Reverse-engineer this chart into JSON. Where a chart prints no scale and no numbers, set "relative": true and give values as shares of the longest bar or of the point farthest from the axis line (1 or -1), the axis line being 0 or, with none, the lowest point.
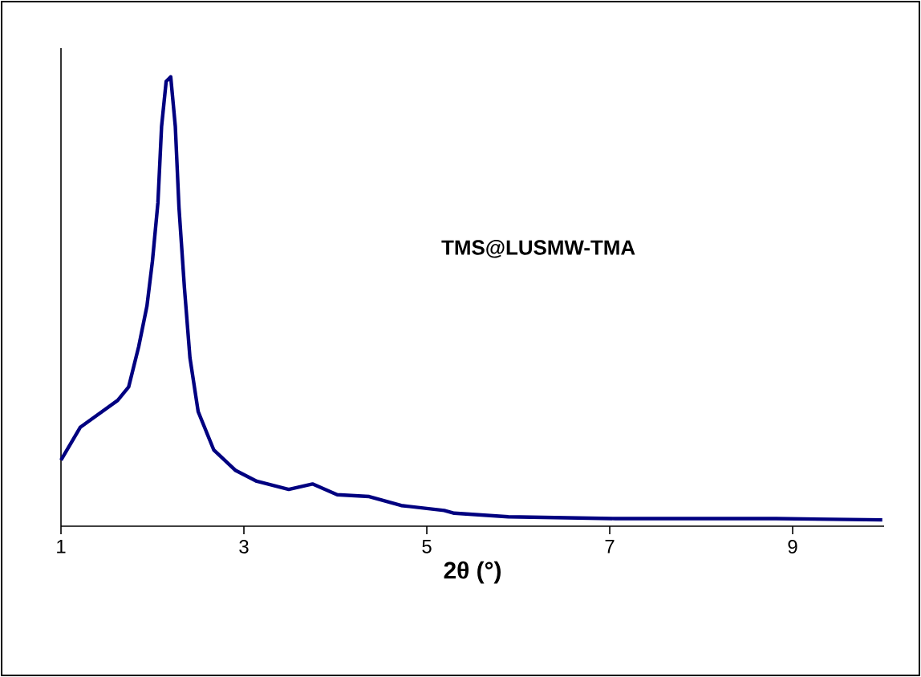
{
  "chart_data": {
    "type": "line",
    "relative": true,
    "xlabel": "2θ (°)",
    "annotations": [
      "TMS@LUSMW-TMA"
    ],
    "color": "#000080",
    "xlim": [
      1,
      10
    ],
    "xticks": [
      1,
      3,
      5,
      7,
      9
    ],
    "marker": "none",
    "line_style": "solid",
    "x": [
      1.0,
      1.21,
      1.62,
      1.74,
      1.85,
      1.94,
      2.0,
      2.06,
      2.1,
      2.15,
      2.2,
      2.25,
      2.29,
      2.35,
      2.41,
      2.5,
      2.67,
      2.91,
      3.14,
      3.49,
      3.75,
      4.02,
      4.37,
      4.72,
      5.19,
      5.3,
      5.89,
      7.06,
      8.82,
      9.98
    ],
    "values": [
      0.147,
      0.22,
      0.28,
      0.31,
      0.4,
      0.49,
      0.59,
      0.72,
      0.89,
      0.99,
      1.0,
      0.89,
      0.71,
      0.53,
      0.375,
      0.255,
      0.17,
      0.124,
      0.1,
      0.082,
      0.094,
      0.07,
      0.066,
      0.046,
      0.035,
      0.029,
      0.021,
      0.017,
      0.017,
      0.014
    ]
  }
}
